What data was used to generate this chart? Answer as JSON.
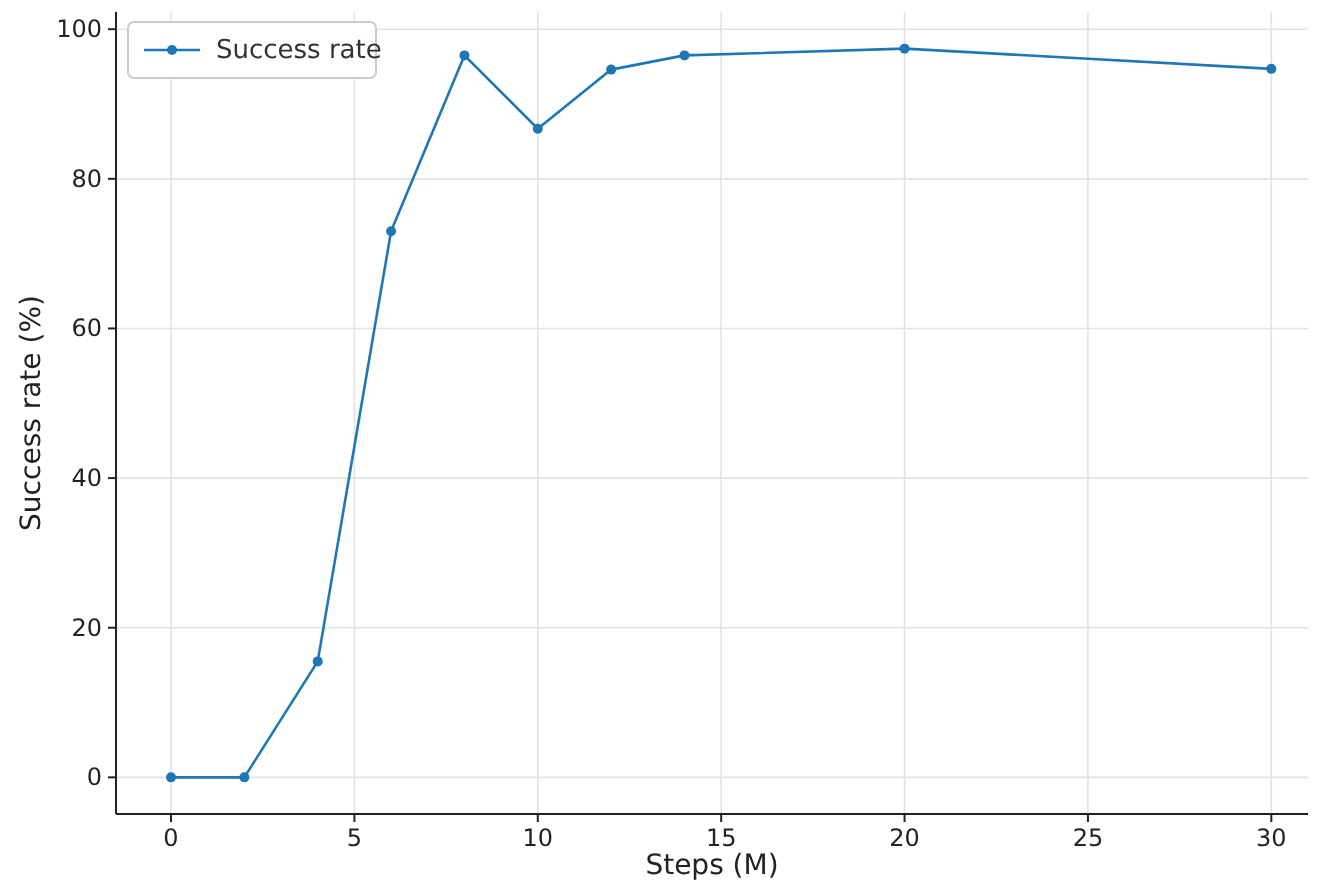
{
  "chart_data": {
    "type": "line",
    "xlabel": "Steps (M)",
    "ylabel": "Success rate (%)",
    "x": [
      0,
      2,
      4,
      6,
      8,
      10,
      12,
      14,
      20,
      30
    ],
    "series": [
      {
        "name": "Success rate",
        "color": "#1f77b4",
        "values": [
          0,
          0,
          15.5,
          73,
          96.5,
          86.7,
          94.6,
          96.5,
          97.4,
          94.7
        ]
      }
    ],
    "xlim": [
      -1.5,
      31
    ],
    "ylim": [
      -4.9,
      102.3
    ],
    "xticks": [
      0,
      5,
      10,
      15,
      20,
      25,
      30
    ],
    "yticks": [
      0,
      20,
      40,
      60,
      80,
      100
    ],
    "grid": true,
    "legend": "top left",
    "marker": "circle",
    "line_style": "solid"
  }
}
